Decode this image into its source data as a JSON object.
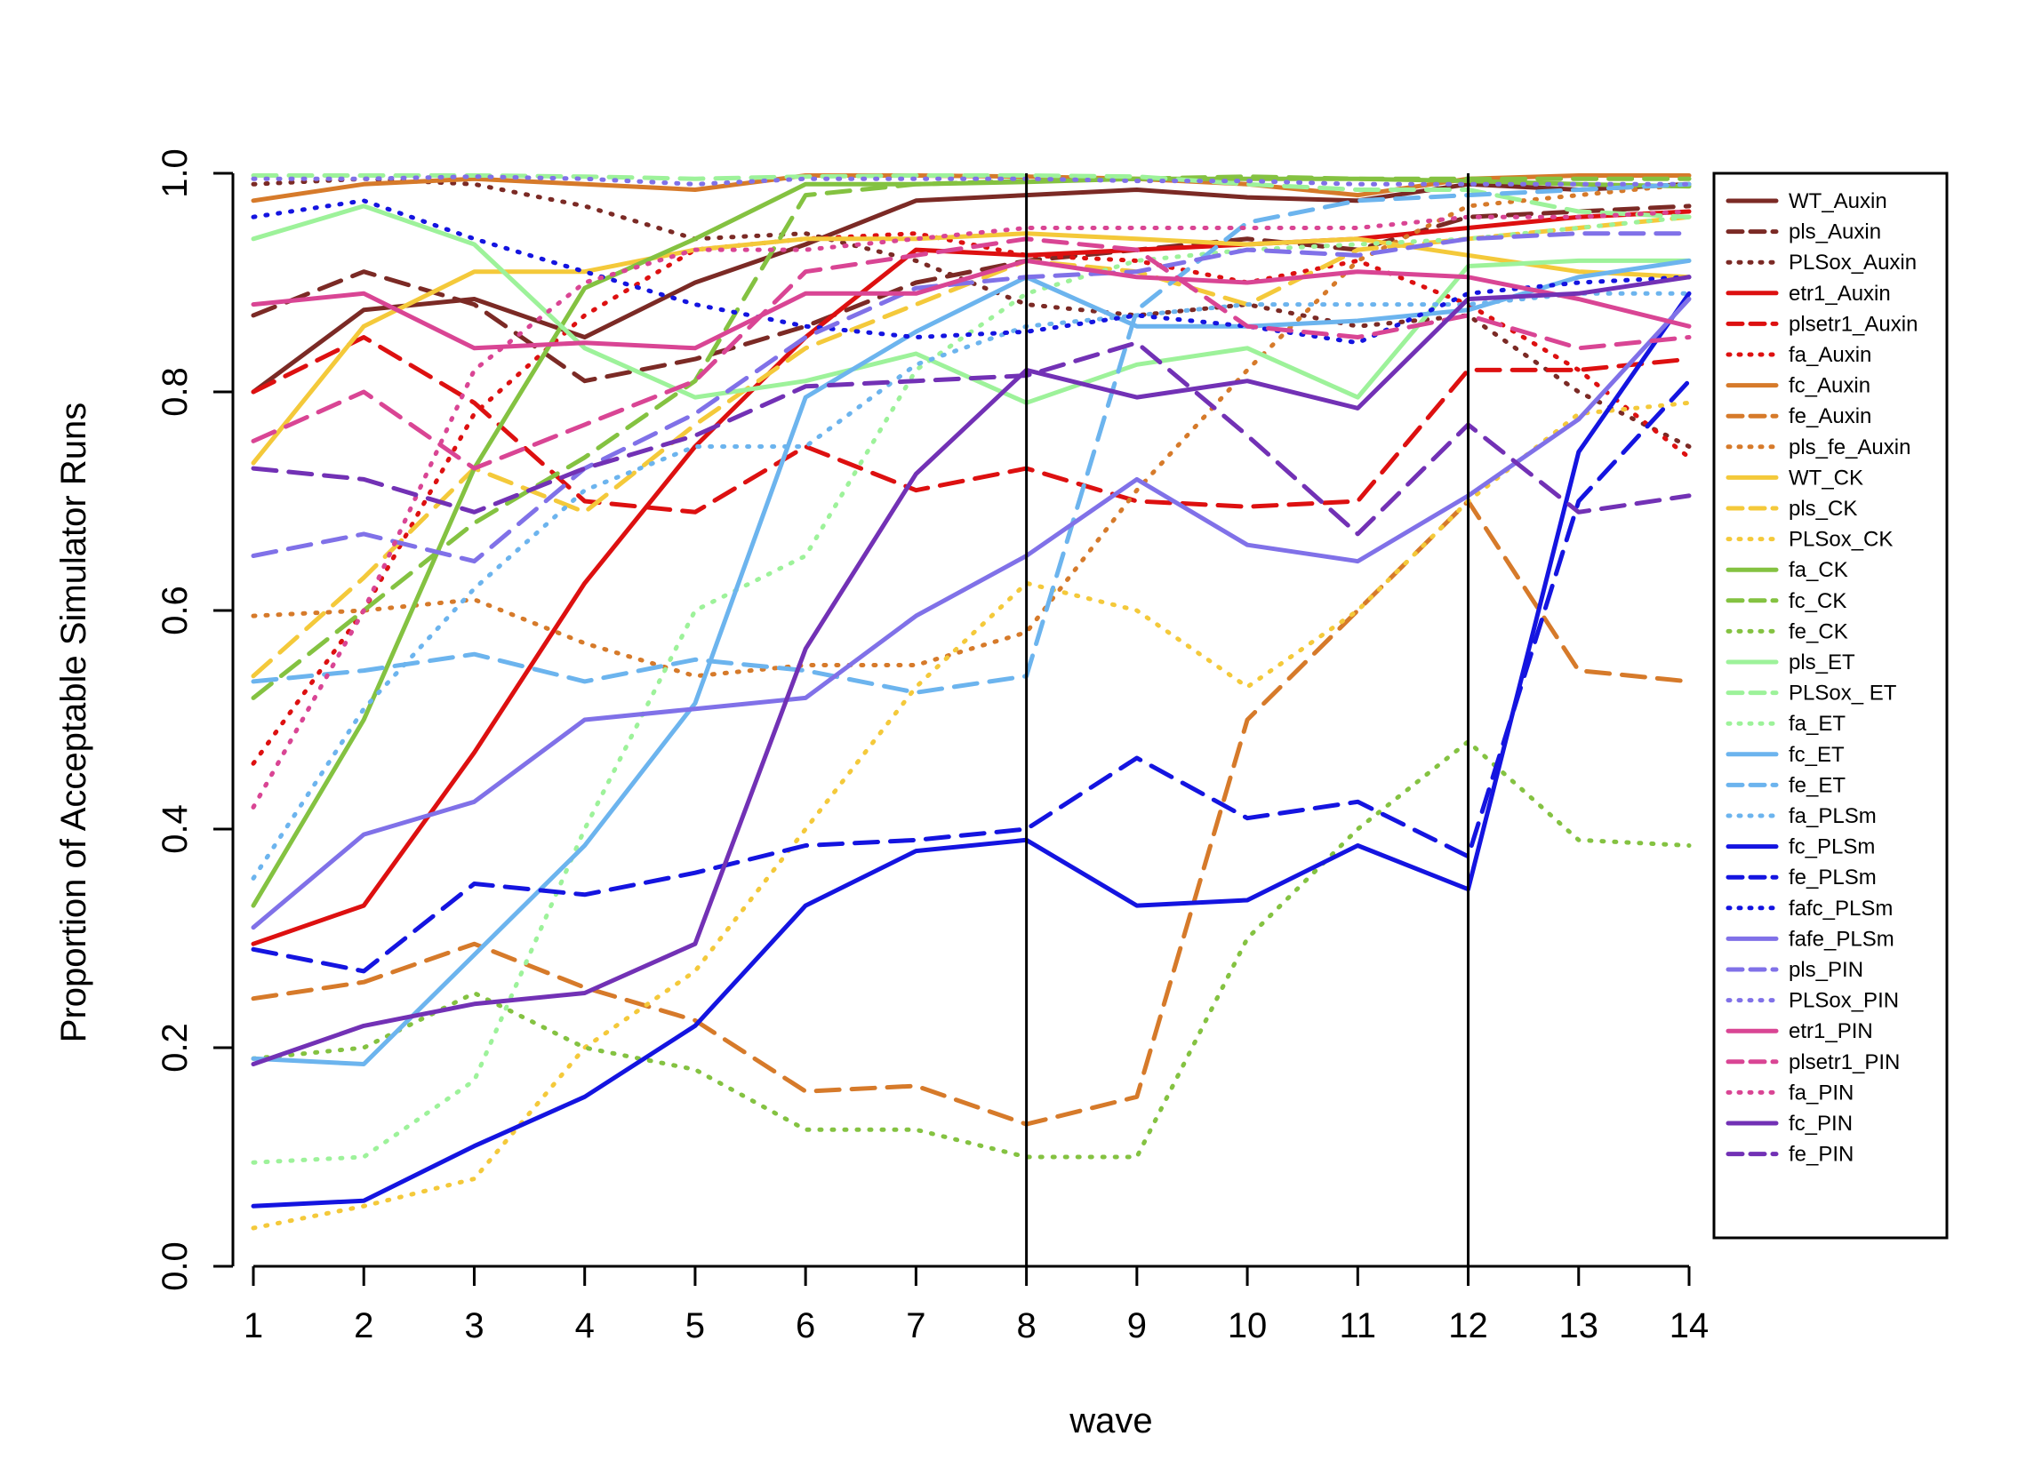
{
  "chart_data": {
    "type": "line",
    "title": "",
    "xlabel": "wave",
    "ylabel": "Proportion of Acceptable Simulator Runs",
    "xlim": [
      1,
      14
    ],
    "ylim": [
      0.0,
      1.0
    ],
    "x": [
      1,
      2,
      3,
      4,
      5,
      6,
      7,
      8,
      9,
      10,
      11,
      12,
      13,
      14
    ],
    "x_tick_labels": [
      "1",
      "2",
      "3",
      "4",
      "5",
      "6",
      "7",
      "8",
      "9",
      "10",
      "11",
      "12",
      "13",
      "14"
    ],
    "y_ticks": [
      0.0,
      0.2,
      0.4,
      0.6,
      0.8,
      1.0
    ],
    "y_tick_labels": [
      "0.0",
      "0.2",
      "0.4",
      "0.6",
      "0.8",
      "1.0"
    ],
    "vlines": [
      8,
      12
    ],
    "legend_position": "right",
    "series": [
      {
        "name": "WT_Auxin",
        "color": "#7b2a25",
        "dash": "solid",
        "values": [
          0.8,
          0.875,
          0.885,
          0.85,
          0.9,
          0.935,
          0.975,
          0.98,
          0.985,
          0.978,
          0.975,
          0.99,
          0.985,
          0.99
        ]
      },
      {
        "name": "pls_Auxin",
        "color": "#7b2a25",
        "dash": "dashed",
        "values": [
          0.87,
          0.91,
          0.88,
          0.81,
          0.83,
          0.86,
          0.9,
          0.92,
          0.93,
          0.94,
          0.93,
          0.96,
          0.965,
          0.97
        ]
      },
      {
        "name": "PLSox_Auxin",
        "color": "#7b2a25",
        "dash": "dotted",
        "values": [
          0.99,
          0.995,
          0.99,
          0.97,
          0.94,
          0.945,
          0.92,
          0.88,
          0.87,
          0.88,
          0.86,
          0.87,
          0.8,
          0.75
        ]
      },
      {
        "name": "etr1_Auxin",
        "color": "#dd1010",
        "dash": "solid",
        "values": [
          0.295,
          0.33,
          0.47,
          0.625,
          0.75,
          0.85,
          0.93,
          0.925,
          0.93,
          0.935,
          0.94,
          0.95,
          0.96,
          0.965
        ]
      },
      {
        "name": "plsetr1_Auxin",
        "color": "#dd1010",
        "dash": "dashed",
        "values": [
          0.8,
          0.85,
          0.79,
          0.7,
          0.69,
          0.75,
          0.71,
          0.73,
          0.7,
          0.695,
          0.7,
          0.82,
          0.82,
          0.83
        ]
      },
      {
        "name": "fa_Auxin",
        "color": "#dd1010",
        "dash": "dotted",
        "values": [
          0.46,
          0.6,
          0.78,
          0.87,
          0.93,
          0.94,
          0.945,
          0.925,
          0.92,
          0.9,
          0.92,
          0.88,
          0.82,
          0.74
        ]
      },
      {
        "name": "fc_Auxin",
        "color": "#d67a2a",
        "dash": "solid",
        "values": [
          0.975,
          0.99,
          0.995,
          0.99,
          0.985,
          0.998,
          0.998,
          0.997,
          0.995,
          0.99,
          0.98,
          0.995,
          0.998,
          0.998
        ]
      },
      {
        "name": "fe_Auxin",
        "color": "#d67a2a",
        "dash": "dashed",
        "values": [
          0.245,
          0.26,
          0.295,
          0.255,
          0.225,
          0.16,
          0.165,
          0.13,
          0.155,
          0.5,
          0.6,
          0.7,
          0.545,
          0.535
        ]
      },
      {
        "name": "pls_fe_Auxin",
        "color": "#d67a2a",
        "dash": "dotted",
        "values": [
          0.595,
          0.6,
          0.61,
          0.57,
          0.54,
          0.55,
          0.55,
          0.58,
          0.71,
          0.82,
          0.92,
          0.97,
          0.98,
          0.99
        ]
      },
      {
        "name": "WT_CK",
        "color": "#f4c93a",
        "dash": "solid",
        "values": [
          0.735,
          0.86,
          0.91,
          0.91,
          0.93,
          0.94,
          0.94,
          0.945,
          0.94,
          0.935,
          0.94,
          0.925,
          0.91,
          0.905
        ]
      },
      {
        "name": "pls_CK",
        "color": "#f4c93a",
        "dash": "dashed",
        "values": [
          0.54,
          0.63,
          0.73,
          0.69,
          0.77,
          0.84,
          0.88,
          0.92,
          0.91,
          0.88,
          0.93,
          0.94,
          0.95,
          0.96
        ]
      },
      {
        "name": "PLSox_CK",
        "color": "#f4c93a",
        "dash": "dotted",
        "values": [
          0.035,
          0.055,
          0.08,
          0.2,
          0.27,
          0.4,
          0.53,
          0.625,
          0.6,
          0.53,
          0.6,
          0.7,
          0.78,
          0.79
        ]
      },
      {
        "name": "fa_CK",
        "color": "#84c241",
        "dash": "solid",
        "values": [
          0.33,
          0.5,
          0.73,
          0.895,
          0.94,
          0.99,
          0.99,
          0.992,
          0.995,
          0.995,
          0.995,
          0.993,
          0.99,
          0.988
        ]
      },
      {
        "name": "fc_CK",
        "color": "#84c241",
        "dash": "dashed",
        "values": [
          0.52,
          0.6,
          0.68,
          0.74,
          0.81,
          0.98,
          0.99,
          0.993,
          0.995,
          0.997,
          0.995,
          0.995,
          0.995,
          0.995
        ]
      },
      {
        "name": "fe_CK",
        "color": "#84c241",
        "dash": "dotted",
        "values": [
          0.19,
          0.2,
          0.25,
          0.2,
          0.18,
          0.125,
          0.125,
          0.1,
          0.1,
          0.3,
          0.4,
          0.48,
          0.39,
          0.385
        ]
      },
      {
        "name": "pls_ET",
        "color": "#9df29a",
        "dash": "solid",
        "values": [
          0.94,
          0.97,
          0.935,
          0.84,
          0.795,
          0.81,
          0.835,
          0.79,
          0.825,
          0.84,
          0.795,
          0.915,
          0.92,
          0.92
        ]
      },
      {
        "name": "PLSox_ ET",
        "color": "#9df29a",
        "dash": "dashed",
        "values": [
          0.998,
          0.998,
          0.998,
          0.997,
          0.995,
          0.997,
          0.998,
          0.998,
          0.997,
          0.99,
          0.985,
          0.985,
          0.965,
          0.96
        ]
      },
      {
        "name": "fa_ET",
        "color": "#9df29a",
        "dash": "dotted",
        "values": [
          0.095,
          0.1,
          0.17,
          0.4,
          0.6,
          0.65,
          0.82,
          0.89,
          0.92,
          0.93,
          0.935,
          0.94,
          0.95,
          0.96
        ]
      },
      {
        "name": "fc_ET",
        "color": "#6cb4ee",
        "dash": "solid",
        "values": [
          0.19,
          0.185,
          0.285,
          0.385,
          0.515,
          0.795,
          0.855,
          0.905,
          0.86,
          0.86,
          0.865,
          0.875,
          0.905,
          0.92
        ]
      },
      {
        "name": "fe_ET",
        "color": "#6cb4ee",
        "dash": "dashed",
        "values": [
          0.535,
          0.545,
          0.56,
          0.535,
          0.555,
          0.545,
          0.525,
          0.54,
          0.875,
          0.955,
          0.975,
          0.98,
          0.985,
          0.99
        ]
      },
      {
        "name": "fa_PLSm",
        "color": "#6cb4ee",
        "dash": "dotted",
        "values": [
          0.355,
          0.51,
          0.62,
          0.71,
          0.75,
          0.75,
          0.825,
          0.86,
          0.87,
          0.88,
          0.88,
          0.88,
          0.89,
          0.89
        ]
      },
      {
        "name": "fc_PLSm",
        "color": "#1414e0",
        "dash": "solid",
        "values": [
          0.055,
          0.06,
          0.11,
          0.155,
          0.22,
          0.33,
          0.38,
          0.39,
          0.33,
          0.335,
          0.385,
          0.345,
          0.745,
          0.89
        ]
      },
      {
        "name": "fe_PLSm",
        "color": "#1414e0",
        "dash": "dashed",
        "values": [
          0.29,
          0.27,
          0.35,
          0.34,
          0.36,
          0.385,
          0.39,
          0.4,
          0.465,
          0.41,
          0.425,
          0.375,
          0.7,
          0.81
        ]
      },
      {
        "name": "fafc_PLSm",
        "color": "#1414e0",
        "dash": "dotted",
        "values": [
          0.96,
          0.975,
          0.94,
          0.91,
          0.88,
          0.86,
          0.85,
          0.855,
          0.87,
          0.86,
          0.845,
          0.89,
          0.9,
          0.905
        ]
      },
      {
        "name": "fafe_PLSm",
        "color": "#8071e8",
        "dash": "solid",
        "values": [
          0.31,
          0.395,
          0.425,
          0.5,
          0.51,
          0.52,
          0.595,
          0.65,
          0.72,
          0.66,
          0.645,
          0.705,
          0.775,
          0.885
        ]
      },
      {
        "name": "pls_PIN",
        "color": "#8071e8",
        "dash": "dashed",
        "values": [
          0.65,
          0.67,
          0.645,
          0.73,
          0.78,
          0.85,
          0.895,
          0.905,
          0.91,
          0.93,
          0.925,
          0.94,
          0.945,
          0.945
        ]
      },
      {
        "name": "PLSox_PIN",
        "color": "#8071e8",
        "dash": "dotted",
        "values": [
          0.995,
          0.995,
          0.997,
          0.995,
          0.99,
          0.995,
          0.995,
          0.995,
          0.993,
          0.993,
          0.99,
          0.99,
          0.99,
          0.99
        ]
      },
      {
        "name": "etr1_PIN",
        "color": "#d94594",
        "dash": "solid",
        "values": [
          0.88,
          0.89,
          0.84,
          0.845,
          0.84,
          0.89,
          0.89,
          0.92,
          0.905,
          0.9,
          0.91,
          0.905,
          0.885,
          0.86
        ]
      },
      {
        "name": "plsetr1_PIN",
        "color": "#d94594",
        "dash": "dashed",
        "values": [
          0.755,
          0.8,
          0.73,
          0.77,
          0.81,
          0.91,
          0.925,
          0.94,
          0.93,
          0.86,
          0.85,
          0.87,
          0.84,
          0.85
        ]
      },
      {
        "name": "fa_PIN",
        "color": "#d94594",
        "dash": "dotted",
        "values": [
          0.42,
          0.6,
          0.82,
          0.9,
          0.93,
          0.93,
          0.94,
          0.95,
          0.95,
          0.95,
          0.95,
          0.96,
          0.96,
          0.965
        ]
      },
      {
        "name": "fc_PIN",
        "color": "#7231b5",
        "dash": "solid",
        "values": [
          0.185,
          0.22,
          0.24,
          0.25,
          0.295,
          0.565,
          0.725,
          0.82,
          0.795,
          0.81,
          0.785,
          0.885,
          0.89,
          0.905
        ]
      },
      {
        "name": "fe_PIN",
        "color": "#7231b5",
        "dash": "dashed",
        "values": [
          0.73,
          0.72,
          0.69,
          0.73,
          0.76,
          0.805,
          0.81,
          0.815,
          0.845,
          0.76,
          0.67,
          0.77,
          0.69,
          0.705
        ]
      }
    ]
  }
}
